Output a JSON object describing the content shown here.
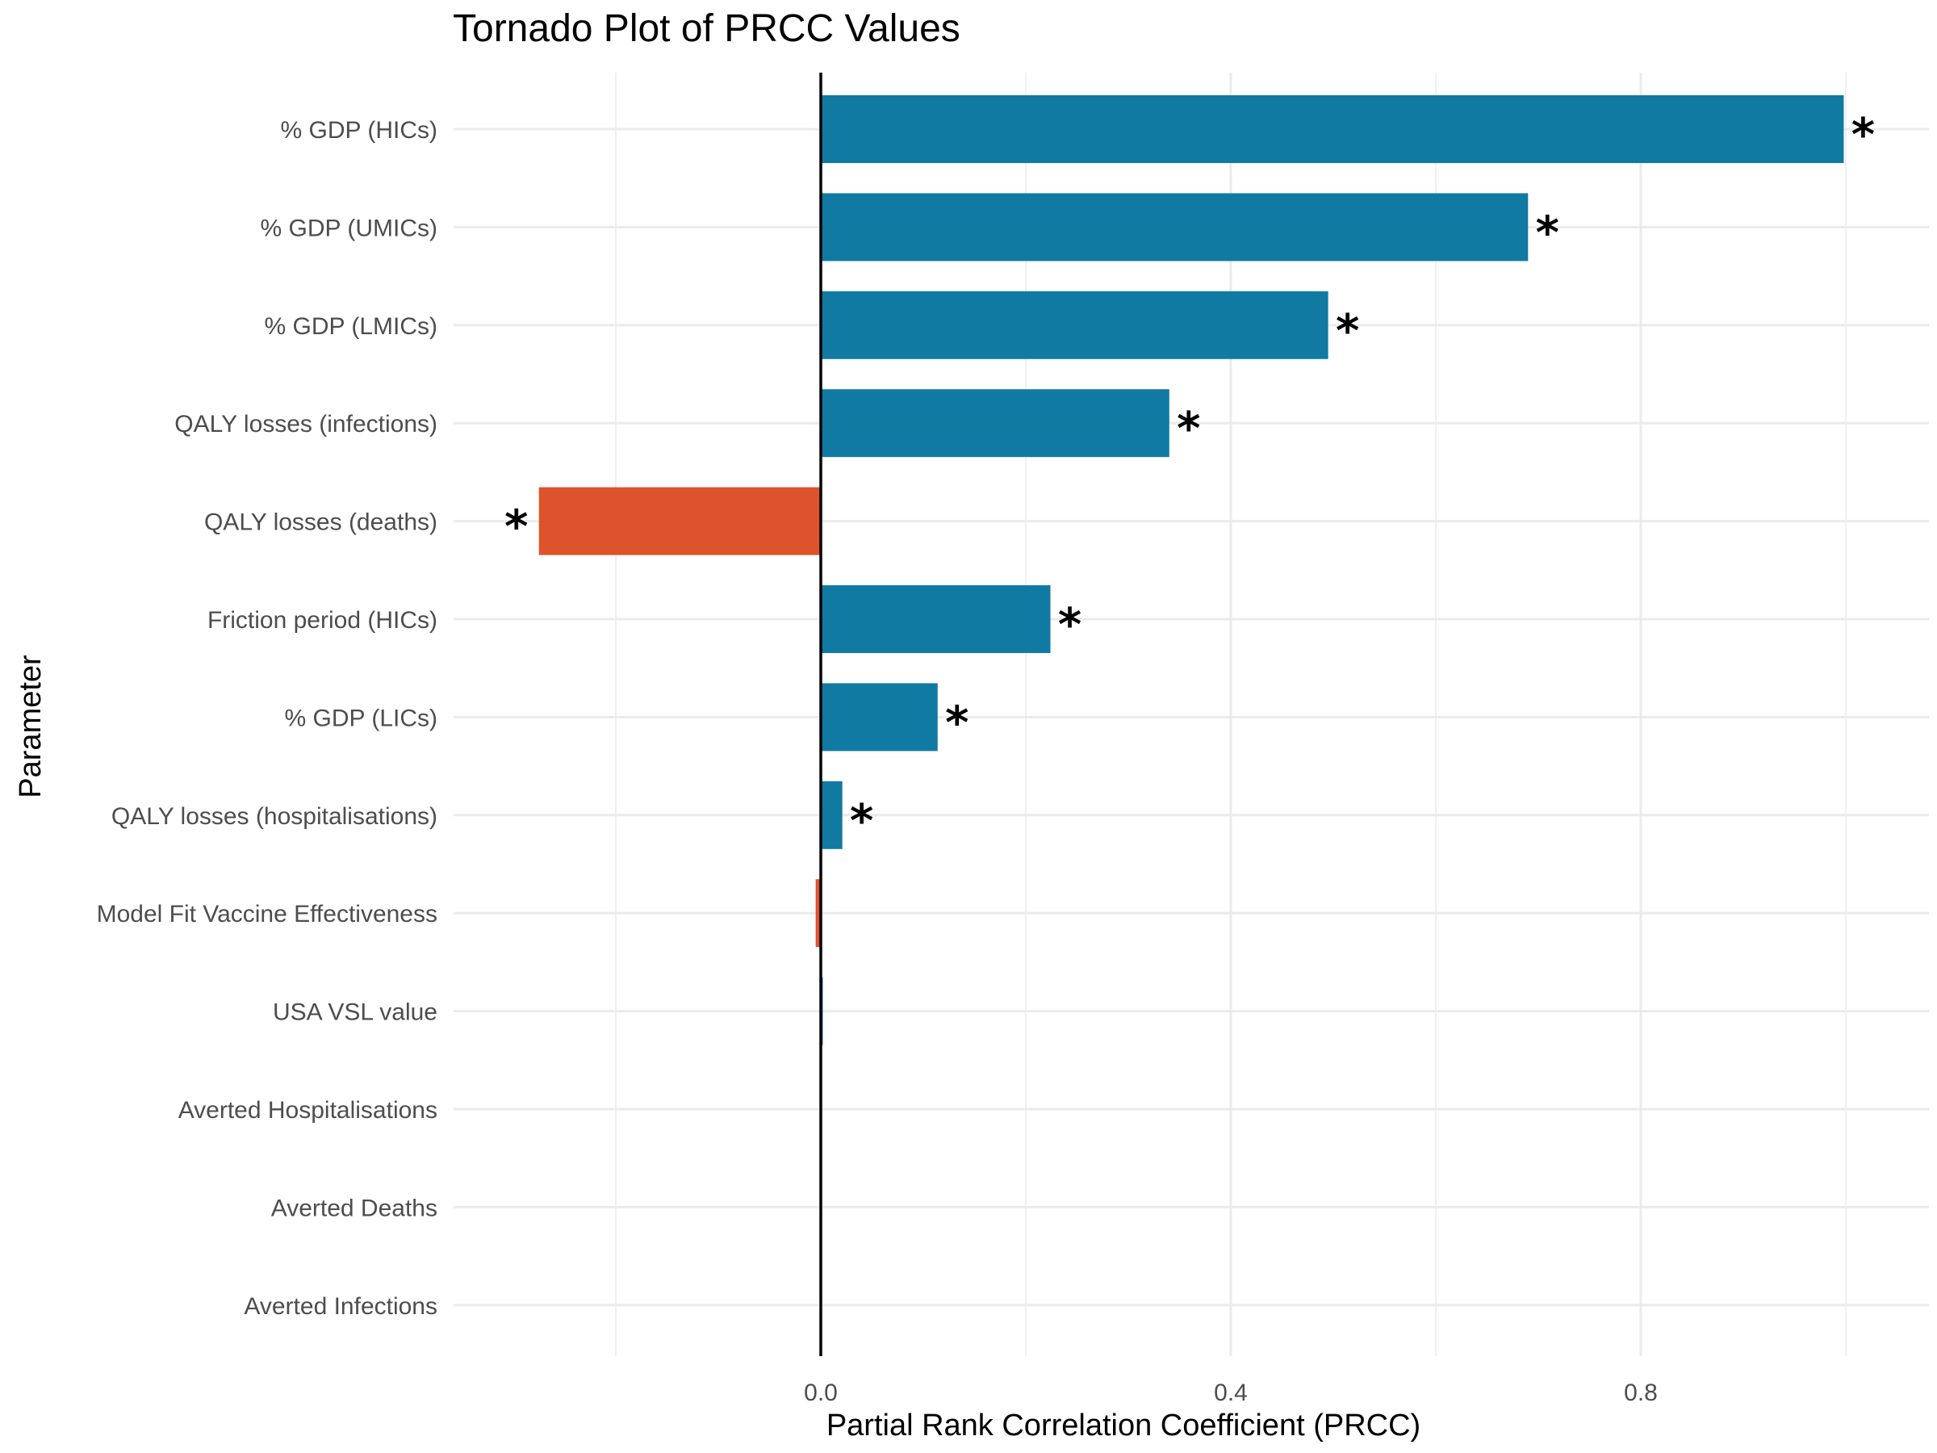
{
  "chart_data": {
    "type": "bar",
    "orientation": "horizontal",
    "title": "Tornado Plot of PRCC Values",
    "xlabel": "Partial Rank Correlation Coefficient (PRCC)",
    "ylabel": "Parameter",
    "xlim": [
      -0.36,
      1.08
    ],
    "x_ticks": [
      0.0,
      0.4,
      0.8
    ],
    "x_tick_labels": [
      "0.0",
      "0.4",
      "0.8"
    ],
    "grid": true,
    "legend": "none",
    "colors": {
      "positive": "#117aa3",
      "negative": "#dd532c",
      "zero_line": "#000000",
      "grid": "#ebebeb"
    },
    "significance_marker": "*",
    "categories": [
      "% GDP (HICs)",
      "% GDP (UMICs)",
      "% GDP (LMICs)",
      "QALY losses (infections)",
      "QALY losses (deaths)",
      "Friction period (HICs)",
      "% GDP (LICs)",
      "QALY losses (hospitalisations)",
      "Model Fit Vaccine Effectiveness",
      "USA VSL value",
      "Averted Hospitalisations",
      "Averted Deaths",
      "Averted Infections"
    ],
    "values": [
      0.998,
      0.69,
      0.495,
      0.34,
      -0.275,
      0.224,
      0.114,
      0.021,
      -0.005,
      0.002,
      0.0,
      0.0,
      0.0
    ],
    "significant": [
      true,
      true,
      true,
      true,
      true,
      true,
      true,
      true,
      false,
      false,
      false,
      false,
      false
    ]
  }
}
